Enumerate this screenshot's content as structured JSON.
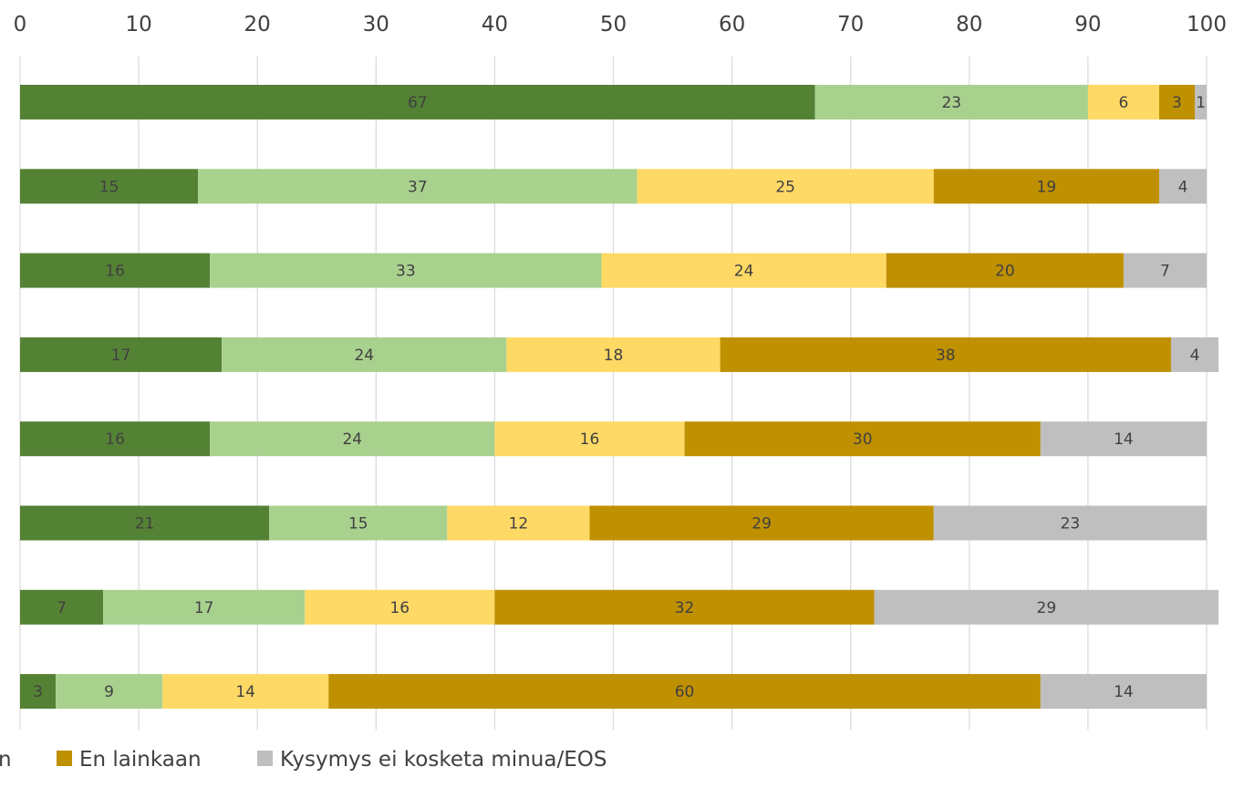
{
  "chart_data": {
    "type": "bar",
    "orientation": "horizontal",
    "stacked": true,
    "xlim": [
      0,
      100
    ],
    "x_ticks": [
      "0",
      "10",
      "20",
      "30",
      "40",
      "50",
      "60",
      "70",
      "80",
      "90",
      "100"
    ],
    "x_axis_position": "top",
    "grid": true,
    "legend_position": "bottom",
    "series": [
      {
        "name": "",
        "color": "#548235",
        "values": [
          67,
          15,
          16,
          17,
          16,
          21,
          7,
          3
        ]
      },
      {
        "name": "",
        "color": "#A9D18E",
        "values": [
          23,
          37,
          33,
          24,
          24,
          15,
          17,
          9
        ]
      },
      {
        "name": "",
        "color": "#FFD966",
        "values": [
          6,
          25,
          24,
          18,
          16,
          12,
          16,
          14
        ]
      },
      {
        "name": "En lainkaan",
        "color": "#BF9000",
        "values": [
          3,
          19,
          20,
          38,
          30,
          29,
          32,
          60
        ]
      },
      {
        "name": "Kysymys ei kosketa minua/EOS",
        "color": "#BFBFBF",
        "values": [
          1,
          4,
          7,
          4,
          14,
          23,
          29,
          14
        ]
      }
    ],
    "legend": [
      {
        "label": "n",
        "color": ""
      },
      {
        "label": "En lainkaan",
        "color": "#BF9000"
      },
      {
        "label": "Kysymys ei kosketa minua/EOS",
        "color": "#BFBFBF"
      }
    ]
  }
}
